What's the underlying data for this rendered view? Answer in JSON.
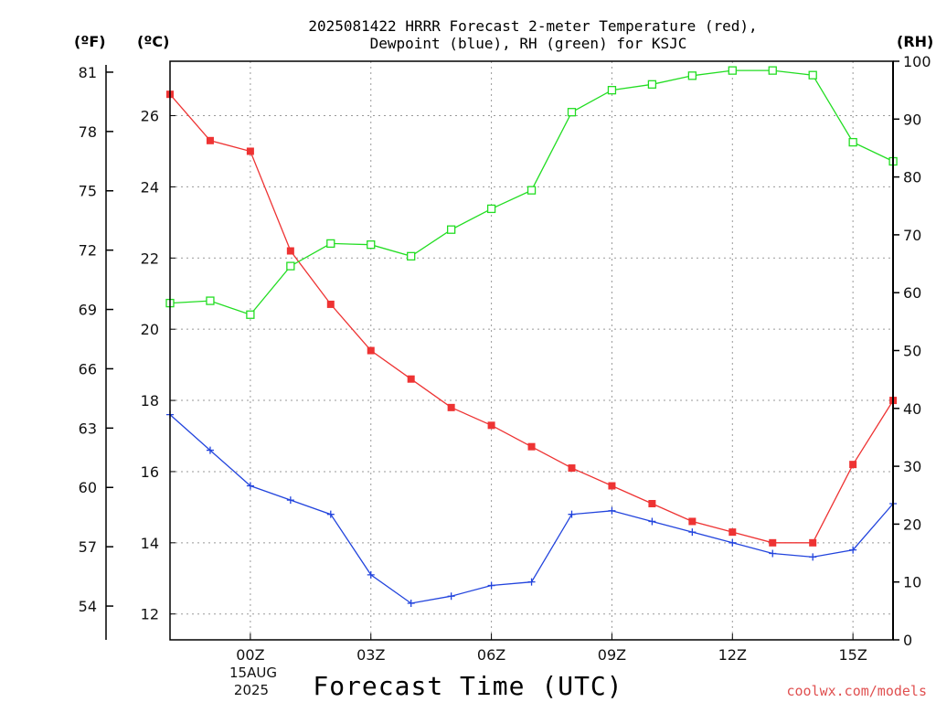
{
  "title": {
    "line1": "2025081422 HRRR Forecast 2-meter Temperature (red),",
    "line2": "Dewpoint (blue), RH (green) for KSJC"
  },
  "units": {
    "fahrenheit": "(ºF)",
    "celsius": "(ºC)",
    "rh": "(RH)"
  },
  "xaxis_date": {
    "day": "15AUG",
    "year": "2025"
  },
  "credit": "coolwx.com/models",
  "colors": {
    "temperature": "#ee3333",
    "dewpoint": "#2244dd",
    "rh": "#22dd22",
    "grid": "#999999"
  },
  "chart_data": {
    "type": "line",
    "title": "2025081422 HRRR Forecast 2-meter Temperature (red), Dewpoint (blue), RH (green) for KSJC",
    "xlabel": "Forecast Time (UTC)",
    "x": [
      "22Z",
      "23Z",
      "00Z",
      "01Z",
      "02Z",
      "03Z",
      "04Z",
      "05Z",
      "06Z",
      "07Z",
      "08Z",
      "09Z",
      "10Z",
      "11Z",
      "12Z",
      "13Z",
      "14Z",
      "15Z",
      "16Z"
    ],
    "x_tick_labels": [
      "00Z",
      "03Z",
      "06Z",
      "09Z",
      "12Z",
      "15Z"
    ],
    "x_tick_indices": [
      2,
      5,
      8,
      11,
      14,
      17
    ],
    "y_celsius_ticks": [
      12,
      14,
      16,
      18,
      20,
      22,
      24,
      26
    ],
    "y_fahrenheit_ticks": [
      54,
      57,
      60,
      63,
      66,
      69,
      72,
      75,
      78,
      81
    ],
    "y_rh_ticks": [
      0,
      10,
      20,
      30,
      40,
      50,
      60,
      70,
      80,
      90,
      100
    ],
    "y_celsius_range": [
      11.3,
      27.6
    ],
    "y_rh_range": [
      0,
      100
    ],
    "grid": true,
    "series": [
      {
        "name": "2-meter Temperature (red)",
        "axis": "celsius",
        "marker": "filled-square",
        "values": [
          26.6,
          25.3,
          25.0,
          22.2,
          20.7,
          19.4,
          18.6,
          17.8,
          17.3,
          16.7,
          16.1,
          15.6,
          15.1,
          14.6,
          14.3,
          14.0,
          14.0,
          16.2,
          18.0
        ]
      },
      {
        "name": "Dewpoint (blue)",
        "axis": "celsius",
        "marker": "plus",
        "values": [
          17.6,
          16.6,
          15.6,
          15.2,
          14.8,
          13.1,
          12.3,
          12.5,
          12.8,
          12.9,
          14.8,
          14.9,
          14.6,
          14.3,
          14.0,
          13.7,
          13.6,
          13.8,
          15.1
        ]
      },
      {
        "name": "RH (green)",
        "axis": "rh",
        "marker": "open-square",
        "values": [
          58.2,
          58.6,
          56.2,
          64.6,
          68.5,
          68.3,
          66.3,
          70.9,
          74.5,
          77.7,
          91.2,
          95.0,
          96.0,
          97.5,
          98.4,
          98.4,
          97.6,
          86.0,
          82.7
        ]
      }
    ]
  }
}
